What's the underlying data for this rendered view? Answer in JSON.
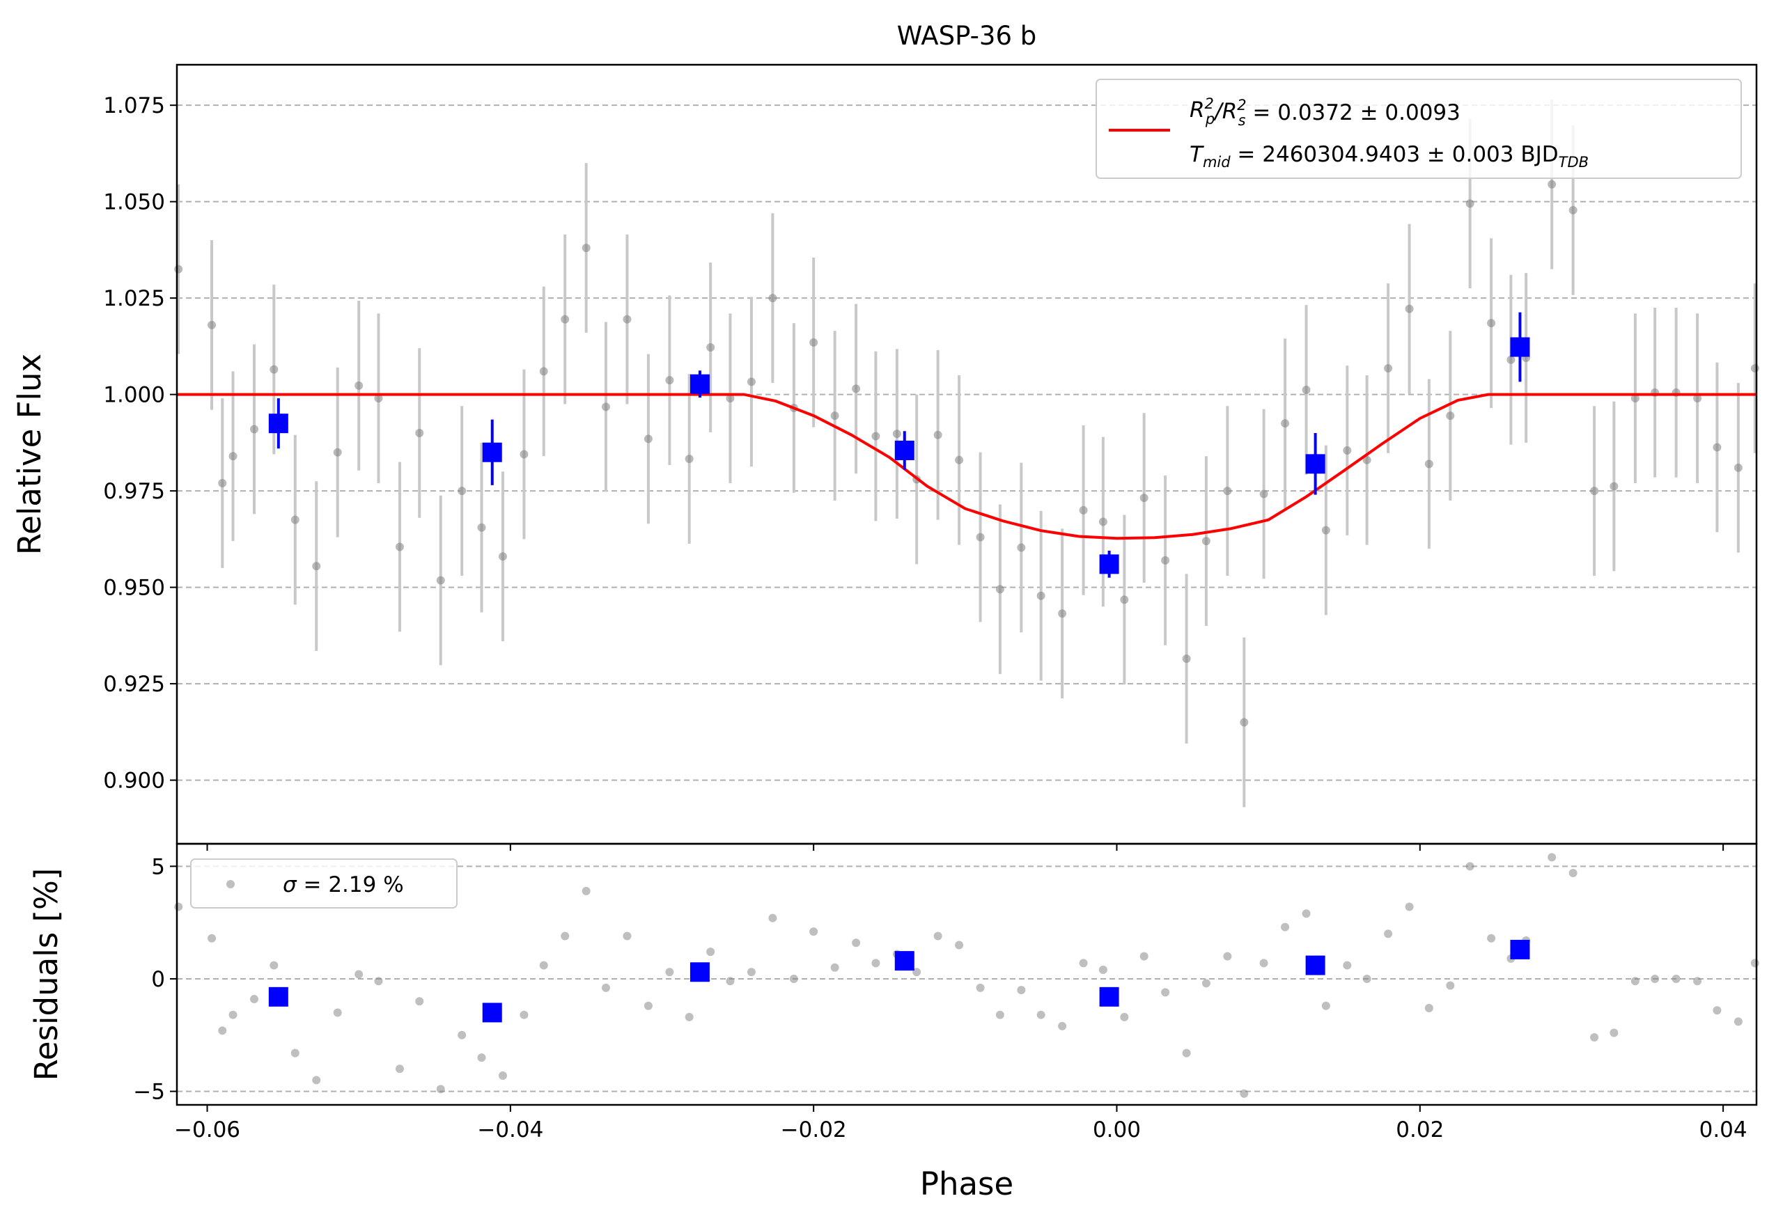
{
  "chart_data": [
    {
      "type": "scatter",
      "panel": "main",
      "title": "WASP-36 b",
      "xlabel": "",
      "ylabel": "Relative Flux",
      "xlim": [
        -0.062,
        0.0422
      ],
      "ylim": [
        0.8835,
        1.0855
      ],
      "grid": "horizontal dashed",
      "legend_position": "top-right",
      "x_ticks": [
        -0.06,
        -0.04,
        -0.02,
        0.0,
        0.02,
        0.04
      ],
      "x_tick_labels": [
        "−0.06",
        "−0.04",
        "−0.02",
        "0.00",
        "0.02",
        "0.04"
      ],
      "y_ticks": [
        0.9,
        0.925,
        0.95,
        0.975,
        1.0,
        1.025,
        1.05,
        1.075
      ],
      "y_tick_labels": [
        "0.900",
        "0.925",
        "0.950",
        "0.975",
        "1.000",
        "1.025",
        "1.050",
        "1.075"
      ],
      "legend": {
        "line1_main": "R",
        "line1_sub_p": "p",
        "line1_sup": "2",
        "line1_slash": "/R",
        "line1_sub_s": "s",
        "line1_sup2": "2",
        "line1_value": " = 0.0372 ± 0.0093",
        "line2_main": "T",
        "line2_sub": "mid",
        "line2_value": " = 2460304.9403 ± 0.003 BJD",
        "line2_tdb": "TDB"
      },
      "series": [
        {
          "kind": "raw",
          "color": "#808080",
          "errorbar_color": "#c8c8c8",
          "error": 0.022,
          "points": [
            [
              -0.0619,
              1.0325
            ],
            [
              -0.0597,
              1.018
            ],
            [
              -0.059,
              0.977
            ],
            [
              -0.0583,
              0.984
            ],
            [
              -0.0569,
              0.991
            ],
            [
              -0.0556,
              1.0065
            ],
            [
              -0.0542,
              0.9675
            ],
            [
              -0.0528,
              0.9555
            ],
            [
              -0.0514,
              0.985
            ],
            [
              -0.05,
              1.0023
            ],
            [
              -0.0487,
              0.999
            ],
            [
              -0.0473,
              0.9605
            ],
            [
              -0.046,
              0.99
            ],
            [
              -0.0446,
              0.9518
            ],
            [
              -0.0432,
              0.975
            ],
            [
              -0.0419,
              0.9655
            ],
            [
              -0.0405,
              0.958
            ],
            [
              -0.0391,
              0.9845
            ],
            [
              -0.0378,
              1.006
            ],
            [
              -0.0364,
              1.0195
            ],
            [
              -0.035,
              1.038
            ],
            [
              -0.0337,
              0.9968
            ],
            [
              -0.0323,
              1.0195
            ],
            [
              -0.0309,
              0.9885
            ],
            [
              -0.0295,
              1.0037
            ],
            [
              -0.0282,
              0.9833
            ],
            [
              -0.0268,
              1.0122
            ],
            [
              -0.0255,
              0.999
            ],
            [
              -0.0241,
              1.0033
            ],
            [
              -0.0227,
              1.025
            ],
            [
              -0.0213,
              0.9965
            ],
            [
              -0.02,
              1.0135
            ],
            [
              -0.0186,
              0.9945
            ],
            [
              -0.0172,
              1.0015
            ],
            [
              -0.0159,
              0.9892
            ],
            [
              -0.0145,
              0.9898
            ],
            [
              -0.0132,
              0.978
            ],
            [
              -0.0118,
              0.9895
            ],
            [
              -0.0104,
              0.983
            ],
            [
              -0.009,
              0.963
            ],
            [
              -0.0077,
              0.9495
            ],
            [
              -0.0063,
              0.9603
            ],
            [
              -0.005,
              0.9478
            ],
            [
              -0.0036,
              0.9432
            ],
            [
              -0.0022,
              0.97
            ],
            [
              -0.0009,
              0.967
            ],
            [
              0.0005,
              0.9468
            ],
            [
              0.0018,
              0.9732
            ],
            [
              0.0032,
              0.957
            ],
            [
              0.0046,
              0.9315
            ],
            [
              0.0059,
              0.962
            ],
            [
              0.0073,
              0.975
            ],
            [
              0.0084,
              0.915
            ],
            [
              0.0097,
              0.9742
            ],
            [
              0.0111,
              0.9925
            ],
            [
              0.0125,
              1.0012
            ],
            [
              0.0138,
              0.9648
            ],
            [
              0.0152,
              0.9855
            ],
            [
              0.0165,
              0.983
            ],
            [
              0.0179,
              1.0068
            ],
            [
              0.0193,
              1.0222
            ],
            [
              0.0206,
              0.982
            ],
            [
              0.022,
              0.9945
            ],
            [
              0.0233,
              1.0495
            ],
            [
              0.0247,
              1.0185
            ],
            [
              0.026,
              1.009
            ],
            [
              0.027,
              1.0095
            ],
            [
              0.0287,
              1.0545
            ],
            [
              0.0301,
              1.0478
            ],
            [
              0.0315,
              0.975
            ],
            [
              0.0328,
              0.9762
            ],
            [
              0.0342,
              0.999
            ],
            [
              0.0355,
              1.0005
            ],
            [
              0.0369,
              1.0005
            ],
            [
              0.0383,
              0.999
            ],
            [
              0.0396,
              0.9863
            ],
            [
              0.041,
              0.981
            ],
            [
              0.0421,
              1.0068
            ]
          ]
        },
        {
          "kind": "binned",
          "color": "#0000ff",
          "points": [
            [
              -0.0553,
              0.9925,
              0.0065
            ],
            [
              -0.0412,
              0.985,
              0.0085
            ],
            [
              -0.0275,
              1.0027,
              0.0035
            ],
            [
              -0.014,
              0.9855,
              0.005
            ],
            [
              -0.0005,
              0.956,
              0.0035
            ],
            [
              0.0131,
              0.982,
              0.008
            ],
            [
              0.0266,
              1.0123,
              0.009
            ]
          ]
        },
        {
          "kind": "model",
          "color": "#ff0000",
          "points": [
            [
              -0.062,
              1.0
            ],
            [
              -0.0246,
              1.0
            ],
            [
              -0.0225,
              0.9983
            ],
            [
              -0.02,
              0.9945
            ],
            [
              -0.0175,
              0.9895
            ],
            [
              -0.015,
              0.9837
            ],
            [
              -0.0125,
              0.9762
            ],
            [
              -0.01,
              0.9704
            ],
            [
              -0.0075,
              0.9672
            ],
            [
              -0.005,
              0.9647
            ],
            [
              -0.0025,
              0.9632
            ],
            [
              0.0,
              0.9627
            ],
            [
              0.0025,
              0.9629
            ],
            [
              0.005,
              0.9637
            ],
            [
              0.0075,
              0.9652
            ],
            [
              0.01,
              0.9675
            ],
            [
              0.0125,
              0.9735
            ],
            [
              0.015,
              0.9803
            ],
            [
              0.0175,
              0.9872
            ],
            [
              0.02,
              0.9938
            ],
            [
              0.0225,
              0.9985
            ],
            [
              0.0245,
              1.0
            ],
            [
              0.0422,
              1.0
            ]
          ]
        }
      ]
    },
    {
      "type": "scatter",
      "panel": "residuals",
      "title": "",
      "xlabel": "Phase",
      "ylabel": "Residuals [%]",
      "xlim": [
        -0.062,
        0.0422
      ],
      "ylim": [
        -5.6,
        6.0
      ],
      "grid": "horizontal dashed",
      "legend_position": "top-left",
      "x_ticks": [
        -0.06,
        -0.04,
        -0.02,
        0.0,
        0.02,
        0.04
      ],
      "x_tick_labels": [
        "−0.06",
        "−0.04",
        "−0.02",
        "0.00",
        "0.02",
        "0.04"
      ],
      "y_ticks": [
        -5,
        0,
        5
      ],
      "y_tick_labels": [
        "−5",
        "0",
        "5"
      ],
      "legend": {
        "sigma_symbol": "σ",
        "sigma_text": " = 2.19 %"
      },
      "series": [
        {
          "kind": "raw",
          "color": "#808080",
          "points": [
            [
              -0.0619,
              3.2
            ],
            [
              -0.0597,
              1.8
            ],
            [
              -0.059,
              -2.3
            ],
            [
              -0.0583,
              -1.6
            ],
            [
              -0.0569,
              -0.9
            ],
            [
              -0.0556,
              0.6
            ],
            [
              -0.0542,
              -3.3
            ],
            [
              -0.0528,
              -4.5
            ],
            [
              -0.0514,
              -1.5
            ],
            [
              -0.05,
              0.2
            ],
            [
              -0.0487,
              -0.1
            ],
            [
              -0.0473,
              -4.0
            ],
            [
              -0.046,
              -1.0
            ],
            [
              -0.0446,
              -4.9
            ],
            [
              -0.0432,
              -2.5
            ],
            [
              -0.0419,
              -3.5
            ],
            [
              -0.0405,
              -4.3
            ],
            [
              -0.0391,
              -1.6
            ],
            [
              -0.0378,
              0.6
            ],
            [
              -0.0364,
              1.9
            ],
            [
              -0.035,
              3.9
            ],
            [
              -0.0337,
              -0.4
            ],
            [
              -0.0323,
              1.9
            ],
            [
              -0.0309,
              -1.2
            ],
            [
              -0.0295,
              0.3
            ],
            [
              -0.0282,
              -1.7
            ],
            [
              -0.0268,
              1.2
            ],
            [
              -0.0255,
              -0.1
            ],
            [
              -0.0241,
              0.3
            ],
            [
              -0.0227,
              2.7
            ],
            [
              -0.0213,
              0.0
            ],
            [
              -0.02,
              2.1
            ],
            [
              -0.0186,
              0.5
            ],
            [
              -0.0172,
              1.6
            ],
            [
              -0.0159,
              0.7
            ],
            [
              -0.0145,
              1.1
            ],
            [
              -0.0132,
              0.3
            ],
            [
              -0.0118,
              1.9
            ],
            [
              -0.0104,
              1.5
            ],
            [
              -0.009,
              -0.4
            ],
            [
              -0.0077,
              -1.6
            ],
            [
              -0.0063,
              -0.5
            ],
            [
              -0.005,
              -1.6
            ],
            [
              -0.0036,
              -2.1
            ],
            [
              -0.0022,
              0.7
            ],
            [
              -0.0009,
              0.4
            ],
            [
              0.0005,
              -1.7
            ],
            [
              0.0018,
              1.0
            ],
            [
              0.0032,
              -0.6
            ],
            [
              0.0046,
              -3.3
            ],
            [
              0.0059,
              -0.2
            ],
            [
              0.0073,
              1.0
            ],
            [
              0.0084,
              -5.1
            ],
            [
              0.0097,
              0.7
            ],
            [
              0.0111,
              2.3
            ],
            [
              0.0125,
              2.9
            ],
            [
              0.0138,
              -1.2
            ],
            [
              0.0152,
              0.6
            ],
            [
              0.0165,
              0.0
            ],
            [
              0.0179,
              2.0
            ],
            [
              0.0193,
              3.2
            ],
            [
              0.0206,
              -1.3
            ],
            [
              0.022,
              -0.3
            ],
            [
              0.0233,
              5.0
            ],
            [
              0.0247,
              1.8
            ],
            [
              0.026,
              0.9
            ],
            [
              0.027,
              1.7
            ],
            [
              0.0287,
              5.4
            ],
            [
              0.0301,
              4.7
            ],
            [
              0.0315,
              -2.6
            ],
            [
              0.0328,
              -2.4
            ],
            [
              0.0342,
              -0.1
            ],
            [
              0.0355,
              0.0
            ],
            [
              0.0369,
              0.0
            ],
            [
              0.0383,
              -0.1
            ],
            [
              0.0396,
              -1.4
            ],
            [
              0.041,
              -1.9
            ],
            [
              0.0421,
              0.7
            ]
          ]
        },
        {
          "kind": "binned",
          "color": "#0000ff",
          "points": [
            [
              -0.0553,
              -0.8
            ],
            [
              -0.0412,
              -1.5
            ],
            [
              -0.0275,
              0.3
            ],
            [
              -0.014,
              0.8
            ],
            [
              -0.0005,
              -0.8
            ],
            [
              0.0131,
              0.6
            ],
            [
              0.0266,
              1.3
            ]
          ]
        }
      ]
    }
  ]
}
